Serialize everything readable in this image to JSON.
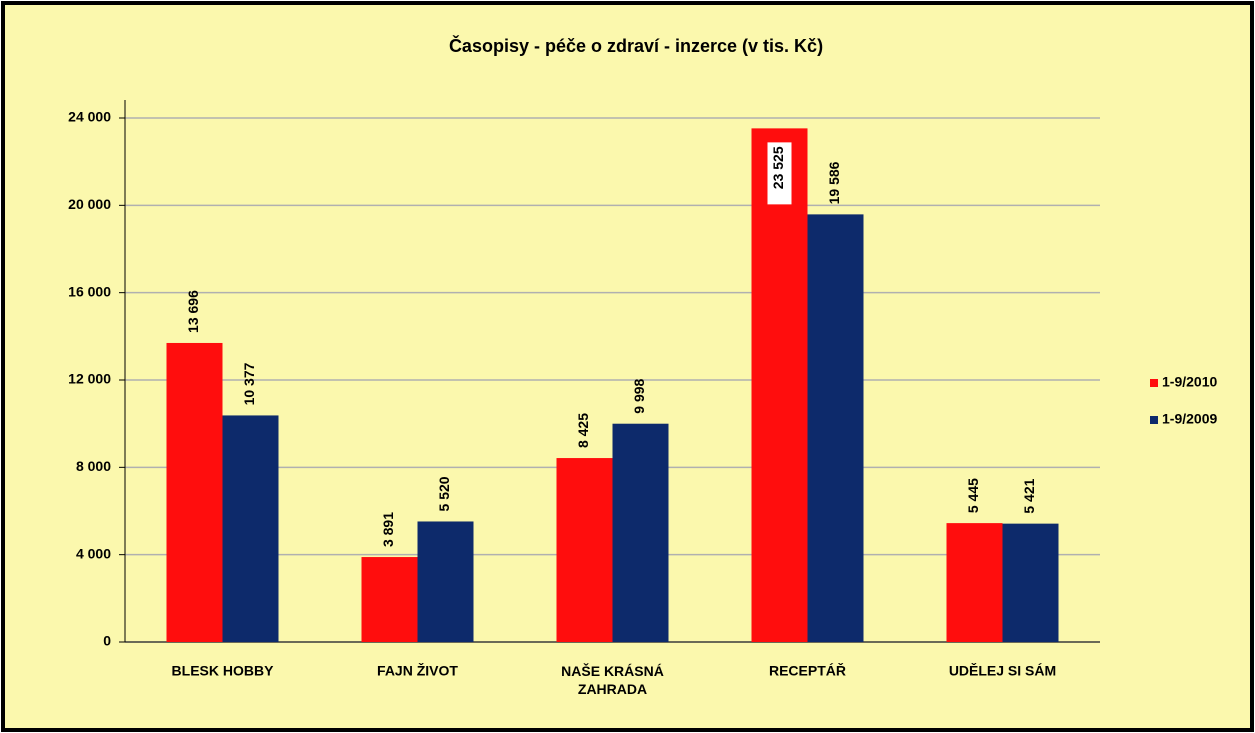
{
  "chart_data": {
    "type": "bar",
    "title": "Časopisy - péče o zdraví - inzerce (v tis. Kč)",
    "categories": [
      "BLESK HOBBY",
      "FAJN ŽIVOT",
      "NAŠE KRÁSNÁ ZAHRADA",
      "RECEPTÁŘ",
      "UDĚLEJ SI SÁM"
    ],
    "series": [
      {
        "name": "1-9/2010",
        "color": "#ff0d0d",
        "values": [
          13696,
          3891,
          8425,
          23525,
          5445
        ],
        "value_labels": [
          "13 696",
          "3 891",
          "8 425",
          "23 525",
          "5 445"
        ]
      },
      {
        "name": "1-9/2009",
        "color": "#0d2a6b",
        "values": [
          10377,
          5520,
          9998,
          19586,
          5421
        ],
        "value_labels": [
          "10 377",
          "5 520",
          "9 998",
          "19 586",
          "5 421"
        ]
      }
    ],
    "ylim": [
      0,
      24000
    ],
    "yticks": [
      0,
      {
        "value": 4000,
        "label": "4 000"
      },
      {
        "value": 8000,
        "label": "8 000"
      },
      {
        "value": 12000,
        "label": "12 000"
      },
      {
        "value": 16000,
        "label": "16 000"
      },
      {
        "value": 20000,
        "label": "20 000"
      },
      {
        "value": 24000,
        "label": "24 000"
      }
    ],
    "grid": true,
    "legend": "right"
  }
}
